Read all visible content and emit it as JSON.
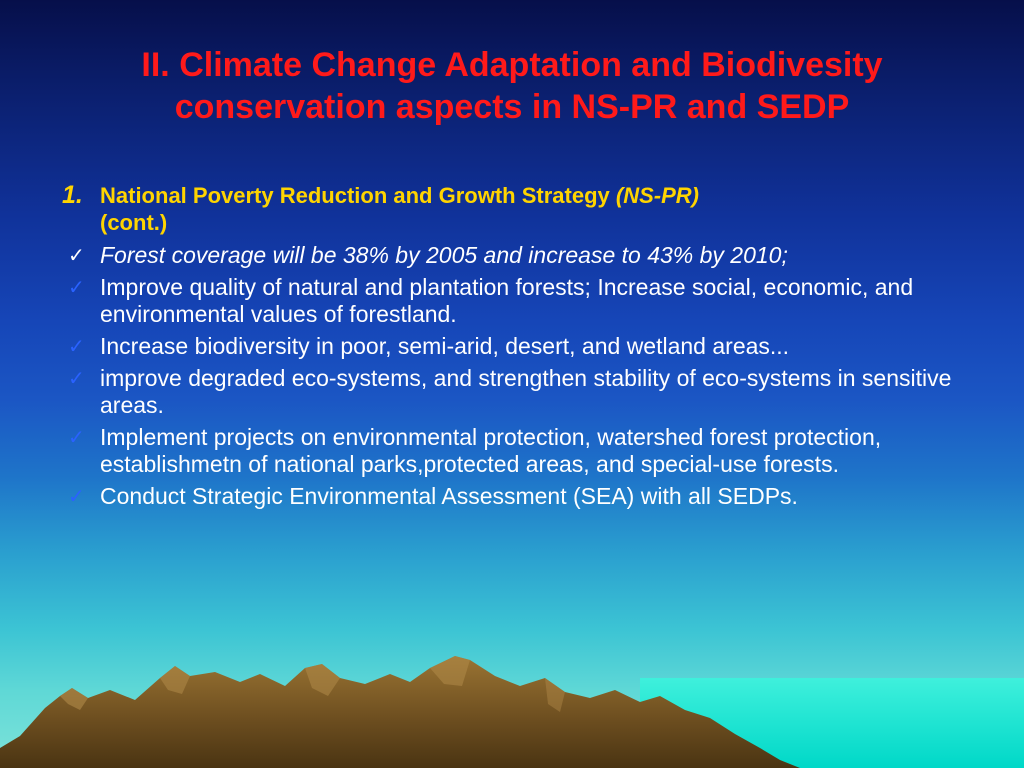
{
  "slide": {
    "title_line1": "II. Climate Change Adaptation and Biodivesity",
    "title_line2": "conservation aspects in NS-PR and SEDP",
    "section_number": "1.",
    "section_heading_main": "National Poverty Reduction and Growth Strategy",
    "section_heading_abbr": "(NS-PR)",
    "section_heading_cont": "(cont.)",
    "check_glyph": "✓",
    "bullets": [
      "Forest coverage will be 38% by 2005 and increase to 43% by 2010;",
      "Improve quality of natural and plantation forests; Increase social, economic, and environmental values of forestland.",
      "Increase biodiversity in poor, semi-arid, desert, and wetland areas...",
      "improve degraded eco-systems, and strengthen stability of eco-systems in sensitive areas.",
      "Implement projects on environmental protection, watershed forest protection, establishmetn of national parks,protected areas, and special-use forests.",
      "Conduct Strategic Environmental Assessment (SEA) with all SEDPs."
    ]
  },
  "colors": {
    "title": "#ff1a1a",
    "heading": "#ffd400",
    "body_text": "#ffffff",
    "check_blue": "#2a62ff",
    "mountain": "#7a5a26",
    "sea": "#00e5d2"
  },
  "decoration": {
    "background_icon": "mountain-landscape-icon"
  }
}
